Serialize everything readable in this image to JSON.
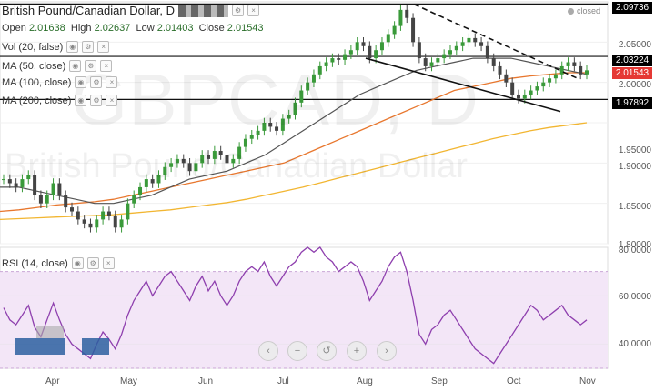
{
  "header": {
    "symbol_title": "British Pound/Canadian Dollar, D",
    "open_label": "Open",
    "open": "2.01638",
    "high_label": "High",
    "high": "2.02637",
    "low_label": "Low",
    "low": "2.01403",
    "close_label": "Close",
    "close": "2.01543",
    "status": "closed"
  },
  "indicators": [
    {
      "label": "Vol (20, false)"
    },
    {
      "label": "MA (50, close)"
    },
    {
      "label": "MA (100, close)"
    },
    {
      "label": "MA (200, close)"
    }
  ],
  "rsi_label": "RSI (14, close)",
  "watermark": {
    "symbol": "GBPCAD, D",
    "name": "British Pound/Canadian Dollar"
  },
  "price_axis": {
    "ticks": [
      "2.05000",
      "2.00000",
      "1.95000",
      "1.90000",
      "1.85000",
      "1.80000"
    ]
  },
  "price_tags": [
    {
      "value": "2.09736",
      "color": "#000000"
    },
    {
      "value": "2.03224",
      "color": "#000000"
    },
    {
      "value": "2.01543",
      "color": "#e53935"
    },
    {
      "value": "1.97892",
      "color": "#000000"
    }
  ],
  "rsi_axis": {
    "ticks": [
      "80.0000",
      "60.0000",
      "40.0000"
    ]
  },
  "time_axis": {
    "labels": [
      "Apr",
      "May",
      "Jun",
      "Jul",
      "Aug",
      "Sep",
      "Oct",
      "Nov"
    ]
  },
  "nav_buttons": [
    {
      "icon": "chevron-left-icon",
      "glyph": "‹"
    },
    {
      "icon": "zoom-out-icon",
      "glyph": "−"
    },
    {
      "icon": "reset-icon",
      "glyph": "↺"
    },
    {
      "icon": "zoom-in-icon",
      "glyph": "+"
    },
    {
      "icon": "chevron-right-icon",
      "glyph": "›"
    }
  ],
  "colors": {
    "up": "#3a9a3a",
    "down": "#444444",
    "ma50": "#555555",
    "ma100": "#e8772e",
    "ma200": "#f2b632",
    "rsi": "#8e3fae",
    "rsi_band": "#f3e6f7"
  },
  "chart_data": {
    "type": "candlestick",
    "price_range": [
      1.8,
      2.1
    ],
    "rsi_range": [
      30,
      80
    ],
    "horizontal_levels": [
      2.09736,
      2.03224,
      1.97892
    ],
    "close_path": [
      1.88,
      1.875,
      1.87,
      1.88,
      1.885,
      1.86,
      1.85,
      1.86,
      1.875,
      1.86,
      1.845,
      1.84,
      1.83,
      1.825,
      1.82,
      1.83,
      1.84,
      1.835,
      1.82,
      1.83,
      1.85,
      1.86,
      1.87,
      1.88,
      1.875,
      1.885,
      1.895,
      1.9,
      1.905,
      1.9,
      1.89,
      1.9,
      1.91,
      1.905,
      1.915,
      1.91,
      1.9,
      1.905,
      1.92,
      1.93,
      1.935,
      1.94,
      1.95,
      1.945,
      1.94,
      1.955,
      1.96,
      1.975,
      1.99,
      2.0,
      2.01,
      2.02,
      2.025,
      2.03,
      2.028,
      2.035,
      2.04,
      2.05,
      2.045,
      2.03,
      2.04,
      2.05,
      2.06,
      2.07,
      2.09,
      2.08,
      2.05,
      2.03,
      2.02,
      2.025,
      2.03,
      2.035,
      2.04,
      2.045,
      2.05,
      2.055,
      2.05,
      2.045,
      2.03,
      2.02,
      2.01,
      2.0,
      1.985,
      1.98,
      1.985,
      1.99,
      1.995,
      2.0,
      2.005,
      2.01,
      2.02,
      2.025,
      2.02,
      2.01,
      2.015
    ],
    "ma50": [
      1.87,
      1.87,
      1.865,
      1.86,
      1.855,
      1.85,
      1.85,
      1.855,
      1.86,
      1.87,
      1.88,
      1.885,
      1.89,
      1.9,
      1.91,
      1.925,
      1.94,
      1.955,
      1.97,
      1.985,
      1.995,
      2.005,
      2.015,
      2.02,
      2.025,
      2.03,
      2.03,
      2.03,
      2.025,
      2.02,
      2.015,
      2.01
    ],
    "ma100": [
      1.84,
      1.842,
      1.845,
      1.848,
      1.85,
      1.852,
      1.855,
      1.86,
      1.865,
      1.87,
      1.875,
      1.88,
      1.885,
      1.89,
      1.895,
      1.9,
      1.91,
      1.92,
      1.93,
      1.94,
      1.95,
      1.96,
      1.97,
      1.98,
      1.99,
      1.995,
      2.0,
      2.005,
      2.008,
      2.01,
      2.012,
      2.012
    ],
    "ma200": [
      1.83,
      1.831,
      1.832,
      1.833,
      1.834,
      1.835,
      1.836,
      1.838,
      1.84,
      1.842,
      1.845,
      1.848,
      1.851,
      1.855,
      1.86,
      1.865,
      1.87,
      1.876,
      1.882,
      1.888,
      1.894,
      1.9,
      1.906,
      1.912,
      1.918,
      1.924,
      1.93,
      1.935,
      1.94,
      1.944,
      1.947,
      1.95
    ],
    "rsi": [
      55,
      50,
      48,
      52,
      56,
      47,
      43,
      50,
      57,
      50,
      44,
      40,
      38,
      36,
      34,
      40,
      45,
      42,
      38,
      44,
      52,
      58,
      62,
      66,
      60,
      64,
      68,
      70,
      66,
      62,
      58,
      64,
      68,
      62,
      66,
      60,
      56,
      60,
      66,
      70,
      72,
      70,
      74,
      68,
      64,
      68,
      72,
      74,
      78,
      80,
      78,
      80,
      76,
      74,
      70,
      72,
      74,
      72,
      66,
      58,
      62,
      66,
      72,
      76,
      78,
      70,
      58,
      44,
      40,
      46,
      48,
      52,
      54,
      50,
      46,
      42,
      38,
      36,
      34,
      32,
      36,
      40,
      44,
      48,
      52,
      56,
      54,
      50,
      52,
      54,
      56,
      52,
      50,
      48,
      50
    ]
  }
}
